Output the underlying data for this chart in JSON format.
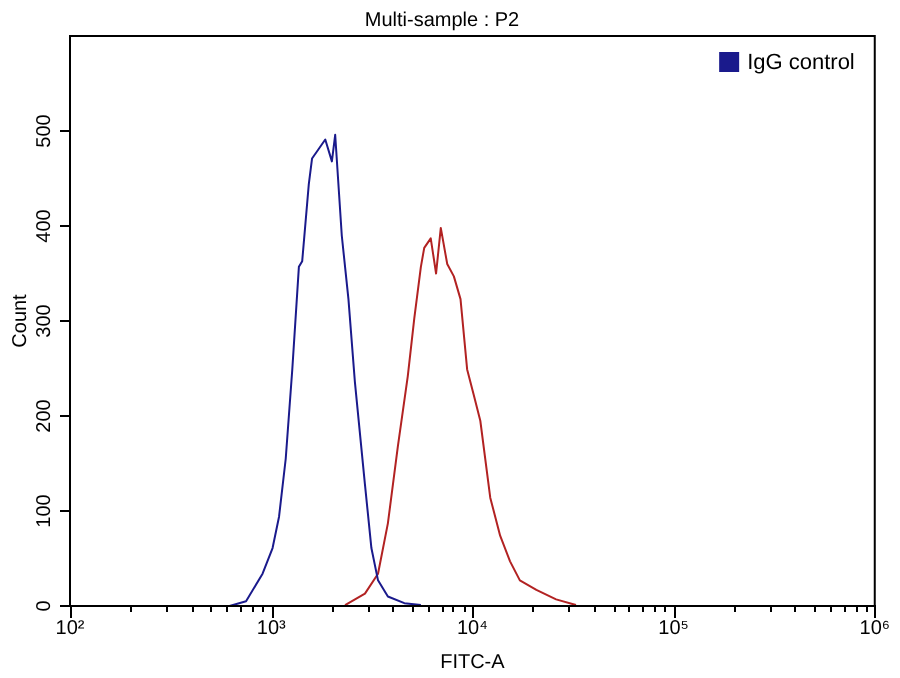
{
  "chart_data": {
    "type": "line",
    "title": "Multi-sample : P2",
    "xlabel": "FITC-A",
    "ylabel": "Count",
    "log": "x",
    "grid": false,
    "legend": "top right",
    "marker": "none",
    "line_style": "solid",
    "xlim": [
      100,
      1000000
    ],
    "ylim": [
      0,
      600
    ],
    "xticks": [
      {
        "value": 100,
        "label": "10²"
      },
      {
        "value": 200,
        "label": null
      },
      {
        "value": 300,
        "label": null
      },
      {
        "value": 400,
        "label": null
      },
      {
        "value": 500,
        "label": null
      },
      {
        "value": 600,
        "label": null
      },
      {
        "value": 700,
        "label": null
      },
      {
        "value": 800,
        "label": null
      },
      {
        "value": 900,
        "label": null
      },
      {
        "value": 1000,
        "label": "10³"
      },
      {
        "value": 2000,
        "label": null
      },
      {
        "value": 3000,
        "label": null
      },
      {
        "value": 4000,
        "label": null
      },
      {
        "value": 5000,
        "label": null
      },
      {
        "value": 6000,
        "label": null
      },
      {
        "value": 7000,
        "label": null
      },
      {
        "value": 8000,
        "label": null
      },
      {
        "value": 9000,
        "label": null
      },
      {
        "value": 10000,
        "label": "10⁴"
      },
      {
        "value": 20000,
        "label": null
      },
      {
        "value": 30000,
        "label": null
      },
      {
        "value": 40000,
        "label": null
      },
      {
        "value": 50000,
        "label": null
      },
      {
        "value": 60000,
        "label": null
      },
      {
        "value": 70000,
        "label": null
      },
      {
        "value": 80000,
        "label": null
      },
      {
        "value": 90000,
        "label": null
      },
      {
        "value": 100000,
        "label": "10⁵"
      },
      {
        "value": 200000,
        "label": null
      },
      {
        "value": 300000,
        "label": null
      },
      {
        "value": 400000,
        "label": null
      },
      {
        "value": 500000,
        "label": null
      },
      {
        "value": 600000,
        "label": null
      },
      {
        "value": 700000,
        "label": null
      },
      {
        "value": 800000,
        "label": null
      },
      {
        "value": 900000,
        "label": null
      },
      {
        "value": 1000000,
        "label": "10⁶"
      }
    ],
    "yticks": [
      0,
      100,
      200,
      300,
      400,
      500
    ],
    "series": [
      {
        "name": "IgG control",
        "color": "#1a1a8c",
        "x": [
          621,
          750,
          906,
          1016,
          1094,
          1181,
          1273,
          1373,
          1426,
          1538,
          1596,
          1722,
          1857,
          2003,
          2080,
          2243,
          2421,
          2606,
          2924,
          3148,
          3396,
          3802,
          4592,
          5546
        ],
        "values": [
          0,
          5,
          34,
          61,
          94,
          155,
          249,
          357,
          363,
          444,
          471,
          481,
          491,
          468,
          496,
          390,
          323,
          236,
          128,
          61,
          27,
          10,
          3,
          1
        ]
      },
      {
        "color": "#b22222",
        "x": [
          2329,
          2924,
          3396,
          3802,
          4262,
          4775,
          5145,
          5546,
          5763,
          6209,
          6600,
          6966,
          7499,
          8091,
          8730,
          9419,
          10160,
          10950,
          12270,
          13740,
          15390,
          17220,
          20800,
          26070,
          32730
        ],
        "values": [
          1,
          13,
          34,
          87,
          168,
          242,
          303,
          357,
          377,
          387,
          350,
          398,
          360,
          347,
          323,
          249,
          222,
          195,
          114,
          74,
          47,
          27,
          17,
          7,
          1
        ]
      }
    ]
  }
}
